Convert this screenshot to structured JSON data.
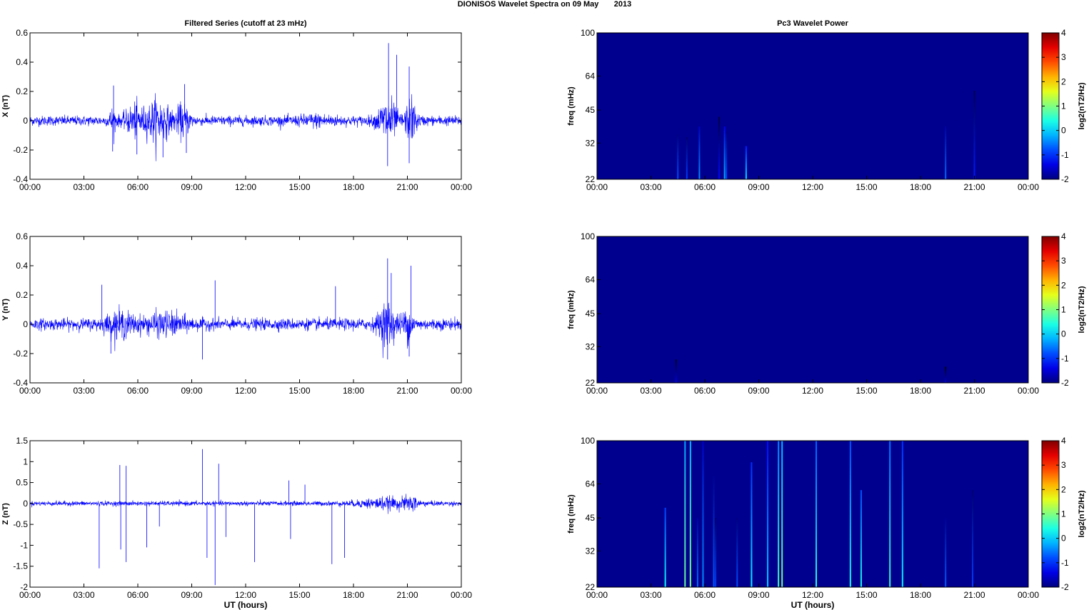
{
  "title": "DIONISOS Wavelet Spectra on 09 May       2013",
  "left_title": "Filtered Series (cutoff at 23 mHz)",
  "right_title": "Pc3 Wavelet Power",
  "xlabel": "UT (hours)",
  "freq_label": "freq (mHz)",
  "colorbar_label": "log2(nT2/Hz)",
  "colorbar_ticks": [
    "4",
    "3",
    "2",
    "1",
    "0",
    "-1",
    "-2"
  ],
  "colors": {
    "trace": "#0000ff",
    "background": "#00008f",
    "axis": "#000000"
  },
  "chart_data": [
    {
      "type": "line",
      "title": "Filtered Series (cutoff at 23 mHz)",
      "ylabel": "X (nT)",
      "xlabel": "",
      "xlim": [
        0,
        24
      ],
      "ylim": [
        -0.4,
        0.6
      ],
      "x_ticks": [
        "00:00",
        "03:00",
        "06:00",
        "09:00",
        "12:00",
        "15:00",
        "18:00",
        "21:00",
        "00:00"
      ],
      "y_ticks": [
        "0.6",
        "0.4",
        "0.2",
        "0",
        "-0.2",
        "-0.4"
      ],
      "envelope": {
        "base": 0.03,
        "bursts": [
          [
            4.6,
            0.2,
            0.06
          ],
          [
            5.8,
            0.5,
            0.08
          ],
          [
            7.1,
            0.7,
            0.12
          ],
          [
            8.5,
            0.4,
            0.08
          ],
          [
            16.0,
            1.0,
            0.02
          ],
          [
            19.9,
            0.5,
            0.13
          ],
          [
            21.2,
            0.3,
            0.12
          ]
        ]
      },
      "spikes": [
        [
          19.95,
          0.53
        ],
        [
          20.4,
          0.45
        ],
        [
          21.1,
          0.37
        ],
        [
          8.6,
          0.25
        ],
        [
          4.65,
          0.24
        ],
        [
          19.9,
          -0.31
        ],
        [
          21.1,
          -0.29
        ],
        [
          7.4,
          -0.25
        ],
        [
          5.95,
          -0.23
        ],
        [
          8.7,
          -0.22
        ],
        [
          4.6,
          -0.21
        ]
      ],
      "series": [
        {
          "values": []
        }
      ]
    },
    {
      "type": "line",
      "title": "",
      "ylabel": "Y (nT)",
      "xlabel": "",
      "xlim": [
        0,
        24
      ],
      "ylim": [
        -0.4,
        0.6
      ],
      "x_ticks": [
        "00:00",
        "03:00",
        "06:00",
        "09:00",
        "12:00",
        "15:00",
        "18:00",
        "21:00",
        "00:00"
      ],
      "y_ticks": [
        "0.6",
        "0.4",
        "0.2",
        "0",
        "-0.2",
        "-0.4"
      ],
      "envelope": {
        "base": 0.035,
        "bursts": [
          [
            5.0,
            0.8,
            0.06
          ],
          [
            7.5,
            1.2,
            0.05
          ],
          [
            19.9,
            0.5,
            0.12
          ],
          [
            21.0,
            0.3,
            0.08
          ]
        ]
      },
      "spikes": [
        [
          19.9,
          0.45
        ],
        [
          21.2,
          0.4
        ],
        [
          10.3,
          0.3
        ],
        [
          4.0,
          0.27
        ],
        [
          17.0,
          0.26
        ],
        [
          20.1,
          0.35
        ],
        [
          4.5,
          -0.2
        ],
        [
          9.6,
          -0.24
        ],
        [
          19.9,
          -0.24
        ],
        [
          21.1,
          -0.22
        ]
      ],
      "series": [
        {
          "values": []
        }
      ]
    },
    {
      "type": "line",
      "title": "",
      "ylabel": "Z (nT)",
      "xlabel": "UT (hours)",
      "xlim": [
        0,
        24
      ],
      "ylim": [
        -2,
        1.5
      ],
      "x_ticks": [
        "00:00",
        "03:00",
        "06:00",
        "09:00",
        "12:00",
        "15:00",
        "18:00",
        "21:00",
        "00:00"
      ],
      "y_ticks": [
        "1.5",
        "1",
        "0.5",
        "0",
        "-0.5",
        "-1",
        "-1.5",
        "-2"
      ],
      "envelope": {
        "base": 0.05,
        "bursts": [
          [
            19.8,
            1.5,
            0.1
          ],
          [
            21.2,
            0.4,
            0.1
          ]
        ]
      },
      "spikes": [
        [
          3.85,
          -1.55
        ],
        [
          5.0,
          0.92
        ],
        [
          5.05,
          -1.1
        ],
        [
          5.35,
          0.9
        ],
        [
          5.35,
          -1.4
        ],
        [
          6.5,
          -1.05
        ],
        [
          7.2,
          -0.55
        ],
        [
          9.6,
          1.3
        ],
        [
          9.85,
          -1.3
        ],
        [
          10.3,
          -1.95
        ],
        [
          10.5,
          0.95
        ],
        [
          10.9,
          -0.8
        ],
        [
          12.5,
          -1.4
        ],
        [
          14.5,
          -0.85
        ],
        [
          16.8,
          -1.45
        ],
        [
          17.5,
          -1.3
        ],
        [
          14.4,
          0.55
        ],
        [
          15.3,
          0.45
        ]
      ],
      "series": [
        {
          "values": []
        }
      ]
    },
    {
      "type": "heatmap",
      "title": "Pc3 Wavelet Power",
      "ylabel": "freq (mHz)",
      "xlabel": "",
      "xlim": [
        0,
        24
      ],
      "y_ticks": [
        "100",
        "64",
        "45",
        "32",
        "22"
      ],
      "clim": [
        -2,
        4
      ],
      "streaks": [
        [
          4.5,
          35,
          -0.8
        ],
        [
          5.0,
          34,
          -0.9
        ],
        [
          5.7,
          38,
          -0.4
        ],
        [
          6.8,
          42,
          -1.2
        ],
        [
          7.1,
          38,
          -0.2
        ],
        [
          7.2,
          36,
          -0.8
        ],
        [
          8.3,
          31,
          0.1
        ],
        [
          19.4,
          38,
          -0.6
        ],
        [
          21.0,
          55,
          -1.1
        ]
      ]
    },
    {
      "type": "heatmap",
      "title": "",
      "ylabel": "freq (mHz)",
      "xlabel": "",
      "xlim": [
        0,
        24
      ],
      "y_ticks": [
        "100",
        "64",
        "45",
        "32",
        "22"
      ],
      "clim": [
        -2,
        4
      ],
      "streaks": [
        [
          4.4,
          28,
          -1.4
        ],
        [
          19.4,
          26,
          -1.5
        ]
      ]
    },
    {
      "type": "heatmap",
      "title": "",
      "ylabel": "freq (mHz)",
      "xlabel": "UT (hours)",
      "xlim": [
        0,
        24
      ],
      "y_ticks": [
        "100",
        "64",
        "45",
        "32",
        "22"
      ],
      "clim": [
        -2,
        4
      ],
      "streaks": [
        [
          3.8,
          50,
          0.3
        ],
        [
          4.9,
          100,
          0.9
        ],
        [
          5.2,
          100,
          1.0
        ],
        [
          5.6,
          45,
          -0.6
        ],
        [
          5.9,
          100,
          -0.4
        ],
        [
          6.5,
          70,
          -0.7
        ],
        [
          6.6,
          45,
          -0.9
        ],
        [
          7.8,
          45,
          -0.8
        ],
        [
          8.6,
          80,
          0.2
        ],
        [
          9.5,
          100,
          0.0
        ],
        [
          10.1,
          100,
          0.7
        ],
        [
          10.3,
          100,
          1.0
        ],
        [
          12.2,
          100,
          0.5
        ],
        [
          14.1,
          100,
          0.4
        ],
        [
          14.7,
          60,
          0.4
        ],
        [
          16.3,
          100,
          0.6
        ],
        [
          17.0,
          100,
          0.2
        ],
        [
          19.4,
          45,
          -0.7
        ],
        [
          20.9,
          60,
          -0.9
        ]
      ]
    }
  ]
}
